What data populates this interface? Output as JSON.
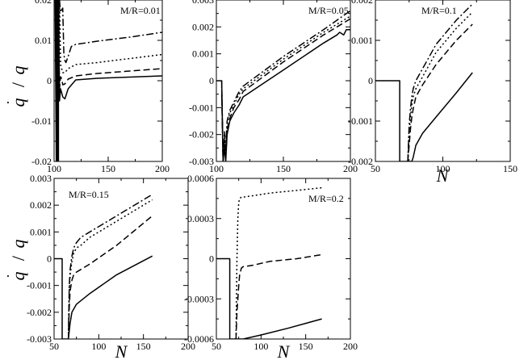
{
  "figure": {
    "ylabel_q": "q",
    "ylabel_slash": "/",
    "ylabel_qdot": "q",
    "xlabel": "N"
  },
  "chart_data": [
    {
      "type": "line",
      "title": "M/R=0.01",
      "xlabel": "",
      "ylabel": "q̇ / q",
      "xlim": [
        100,
        200
      ],
      "ylim": [
        -0.02,
        0.02
      ],
      "xticks": [
        100,
        150,
        200
      ],
      "yticks": [
        -0.02,
        -0.01,
        0,
        0.01,
        0.02
      ],
      "xticklabels": [
        "100",
        "150",
        "200"
      ],
      "yticklabels": [
        "-0.02",
        "-0.01",
        "0",
        "0.01",
        "0.02"
      ],
      "series": [
        {
          "name": "solid",
          "style": "solid",
          "x": [
            101,
            102,
            102,
            103,
            103,
            104,
            104,
            105,
            106,
            107,
            108,
            110,
            113,
            120,
            140,
            170,
            200
          ],
          "y": [
            0.02,
            -0.02,
            0.02,
            -0.02,
            0.02,
            -0.02,
            0.02,
            -0.005,
            -0.002,
            -0.003,
            -0.004,
            -0.0045,
            -0.002,
            0.0002,
            0.0006,
            0.0009,
            0.0012
          ]
        },
        {
          "name": "dashed",
          "style": "dashed",
          "x": [
            102,
            103,
            104,
            105,
            106,
            107,
            108,
            110,
            113,
            120,
            140,
            170,
            200
          ],
          "y": [
            0.02,
            -0.01,
            0.02,
            -0.002,
            0.001,
            0.0005,
            -0.001,
            -0.0008,
            0.0004,
            0.0012,
            0.0018,
            0.0024,
            0.003
          ]
        },
        {
          "name": "dotted",
          "style": "dotted",
          "x": [
            103,
            104,
            105,
            106,
            107,
            108,
            110,
            113,
            120,
            140,
            170,
            200
          ],
          "y": [
            0.02,
            0.0,
            0.02,
            0.004,
            0.003,
            0.002,
            0.002,
            0.003,
            0.004,
            0.0045,
            0.0055,
            0.0065
          ]
        },
        {
          "name": "dash-dot",
          "style": "dashdot",
          "x": [
            105,
            106,
            108,
            109,
            110,
            111,
            113,
            116,
            120,
            140,
            170,
            200
          ],
          "y": [
            0.02,
            0.017,
            0.018,
            0.0065,
            0.005,
            0.0045,
            0.006,
            0.0085,
            0.009,
            0.0098,
            0.0108,
            0.012
          ]
        }
      ]
    },
    {
      "type": "line",
      "title": "M/R=0.05",
      "xlabel": "",
      "ylabel": "",
      "xlim": [
        100,
        200
      ],
      "ylim": [
        -0.003,
        0.003
      ],
      "xticks": [
        100,
        150,
        200
      ],
      "yticks": [
        -0.003,
        -0.002,
        -0.001,
        0,
        0.001,
        0.002,
        0.003
      ],
      "xticklabels": [
        "100",
        "150",
        "200"
      ],
      "yticklabels": [
        "-0.003",
        "-0.002",
        "-0.001",
        "0",
        "0.001",
        "0.002",
        "0.003"
      ],
      "series": [
        {
          "name": "solid",
          "style": "solid",
          "x": [
            100,
            104,
            105,
            106,
            107,
            108,
            110,
            113,
            117,
            120,
            150,
            180,
            190,
            192,
            195,
            197,
            200
          ],
          "y": [
            0.0,
            0.0,
            -0.003,
            -0.0025,
            -0.003,
            -0.002,
            -0.0015,
            -0.0012,
            -0.0009,
            -0.0006,
            0.0004,
            0.0014,
            0.0017,
            0.0018,
            0.0017,
            0.0019,
            0.0019
          ]
        },
        {
          "name": "dashed",
          "style": "dashed",
          "x": [
            104,
            105,
            106,
            107,
            108,
            110,
            113,
            117,
            120,
            150,
            180,
            200
          ],
          "y": [
            0.0,
            -0.003,
            -0.0022,
            -0.0028,
            -0.0018,
            -0.0014,
            -0.001,
            -0.0007,
            -0.0004,
            0.0007,
            0.0017,
            0.0023
          ]
        },
        {
          "name": "dotted",
          "style": "dotted",
          "x": [
            104,
            105,
            106,
            107,
            108,
            110,
            113,
            117,
            120,
            150,
            180,
            200
          ],
          "y": [
            -0.0002,
            -0.003,
            -0.002,
            -0.0026,
            -0.0016,
            -0.0012,
            -0.0009,
            -0.0005,
            -0.0003,
            0.0008,
            0.0018,
            0.0024
          ]
        },
        {
          "name": "dash-dot",
          "style": "dashdot",
          "x": [
            104,
            105,
            106,
            107,
            108,
            110,
            113,
            117,
            120,
            150,
            180,
            200
          ],
          "y": [
            -0.0005,
            -0.003,
            -0.0019,
            -0.0025,
            -0.0015,
            -0.0011,
            -0.0008,
            -0.0004,
            -0.0002,
            0.0009,
            0.0019,
            0.0026
          ]
        }
      ]
    },
    {
      "type": "line",
      "title": "M/R=0.1",
      "xlabel": "N",
      "ylabel": "",
      "xlim": [
        50,
        150
      ],
      "ylim": [
        -0.002,
        0.002
      ],
      "xticks": [
        50,
        100,
        150
      ],
      "yticks": [
        -0.002,
        -0.001,
        0,
        0.001,
        0.002
      ],
      "xticklabels": [
        "50",
        "100",
        "150"
      ],
      "yticklabels": [
        "-0.002",
        "-0.001",
        "0",
        "0.001",
        "0.002"
      ],
      "series": [
        {
          "name": "solid",
          "style": "solid",
          "x": [
            50,
            68,
            68,
            69,
            75,
            77,
            77,
            78,
            80,
            85,
            95,
            110,
            122
          ],
          "y": [
            0.0,
            0.0,
            -0.002,
            -0.002,
            -0.002,
            -0.002,
            -0.002,
            -0.0019,
            -0.0016,
            -0.0013,
            -0.0009,
            -0.0003,
            0.0002
          ]
        },
        {
          "name": "dashed",
          "style": "dashed",
          "x": [
            74,
            75,
            76,
            77,
            78,
            80,
            85,
            95,
            110,
            122
          ],
          "y": [
            -0.002,
            -0.0016,
            -0.0012,
            -0.0009,
            -0.0007,
            -0.0004,
            -0.0001,
            0.0004,
            0.001,
            0.0014
          ]
        },
        {
          "name": "dotted",
          "style": "dotted",
          "x": [
            74,
            75,
            76,
            77,
            78,
            80,
            85,
            95,
            110,
            122
          ],
          "y": [
            -0.002,
            -0.0013,
            -0.0009,
            -0.0006,
            -0.0004,
            -0.0002,
            0.0001,
            0.0007,
            0.0013,
            0.0017
          ]
        },
        {
          "name": "dash-dot",
          "style": "dashdot",
          "x": [
            74,
            75,
            76,
            77,
            78,
            80,
            85,
            95,
            110,
            122
          ],
          "y": [
            -0.002,
            -0.0011,
            -0.0007,
            -0.0004,
            -0.0002,
            0.0,
            0.0003,
            0.0009,
            0.0015,
            0.0019
          ]
        }
      ]
    },
    {
      "type": "line",
      "title": "M/R=0.15",
      "xlabel": "N",
      "ylabel": "q̇ / q",
      "xlim": [
        50,
        200
      ],
      "ylim": [
        -0.003,
        0.003
      ],
      "xticks": [
        50,
        100,
        150,
        200
      ],
      "yticks": [
        -0.003,
        -0.002,
        -0.001,
        0,
        0.001,
        0.002,
        0.003
      ],
      "xticklabels": [
        "50",
        "100",
        "150",
        "200"
      ],
      "yticklabels": [
        "-0.003",
        "-0.002",
        "-0.001",
        "0",
        "0.001",
        "0.002",
        "0.003"
      ],
      "series": [
        {
          "name": "solid",
          "style": "solid",
          "x": [
            50,
            59,
            59,
            60,
            63,
            66,
            66,
            67,
            68,
            70,
            75,
            90,
            120,
            160
          ],
          "y": [
            0.0,
            0.0,
            -0.003,
            -0.003,
            -0.003,
            -0.003,
            -0.003,
            -0.0027,
            -0.0024,
            -0.002,
            -0.0017,
            -0.0013,
            -0.0006,
            0.0001
          ]
        },
        {
          "name": "dashed",
          "style": "dashed",
          "x": [
            66,
            67,
            68,
            70,
            72,
            75,
            80,
            90,
            120,
            160
          ],
          "y": [
            -0.003,
            -0.0018,
            -0.0012,
            -0.0008,
            -0.0006,
            -0.0005,
            -0.0004,
            -0.0002,
            0.0005,
            0.0016
          ]
        },
        {
          "name": "dotted",
          "style": "dotted",
          "x": [
            66,
            67,
            68,
            70,
            72,
            75,
            80,
            90,
            120,
            160
          ],
          "y": [
            -0.003,
            -0.0012,
            -0.0006,
            -0.0001,
            0.0002,
            0.0004,
            0.0005,
            0.0008,
            0.0014,
            0.0022
          ]
        },
        {
          "name": "dash-dot",
          "style": "dashdot",
          "x": [
            66,
            67,
            68,
            70,
            72,
            75,
            80,
            90,
            120,
            160
          ],
          "y": [
            -0.003,
            -0.001,
            -0.0004,
            0.0001,
            0.0004,
            0.0006,
            0.0008,
            0.001,
            0.0016,
            0.0024
          ]
        }
      ]
    },
    {
      "type": "line",
      "title": "M/R=0.2",
      "xlabel": "N",
      "ylabel": "",
      "xlim": [
        50,
        200
      ],
      "ylim": [
        -0.0006,
        0.0006
      ],
      "xticks": [
        50,
        100,
        150,
        200
      ],
      "yticks": [
        -0.0006,
        -0.0003,
        0,
        0.0003,
        0.0006
      ],
      "xticklabels": [
        "50",
        "100",
        "150",
        "200"
      ],
      "yticklabels": [
        "-0.0006",
        "-0.0003",
        "0",
        "0.0003",
        "0.0006"
      ],
      "series": [
        {
          "name": "solid",
          "style": "solid",
          "x": [
            50,
            65,
            65,
            66,
            70,
            72,
            72,
            74,
            80,
            100,
            130,
            168
          ],
          "y": [
            0.0,
            0.0,
            -0.0006,
            -0.0006,
            -0.0006,
            -0.0006,
            -0.0006,
            -0.0006,
            -0.0006,
            -0.00057,
            -0.00052,
            -0.00045
          ]
        },
        {
          "name": "dashed",
          "style": "dashed",
          "x": [
            72,
            73,
            74,
            75,
            76,
            78,
            80,
            90,
            110,
            140,
            168
          ],
          "y": [
            -0.0006,
            -0.0004,
            -0.0003,
            -0.0002,
            -0.00012,
            -7e-05,
            -6e-05,
            -5e-05,
            -2e-05,
            0.0,
            3e-05
          ]
        },
        {
          "name": "dotted",
          "style": "dotted",
          "x": [
            72,
            73,
            74,
            75,
            76,
            78,
            80,
            90,
            110,
            140,
            168
          ],
          "y": [
            -0.0006,
            0.0,
            0.0003,
            0.00042,
            0.00045,
            0.00046,
            0.00046,
            0.00047,
            0.00049,
            0.00051,
            0.00053
          ]
        }
      ]
    }
  ]
}
